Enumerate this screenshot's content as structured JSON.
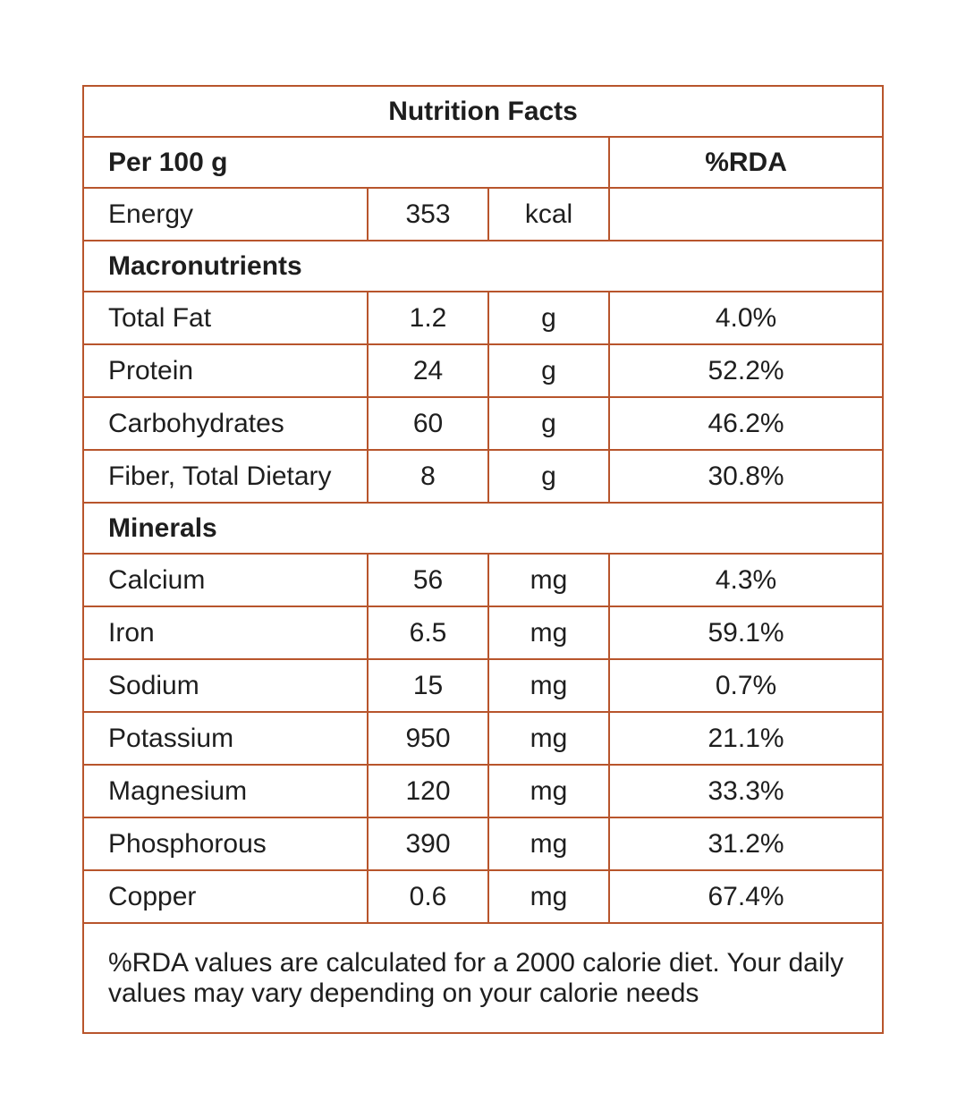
{
  "table": {
    "title": "Nutrition Facts",
    "header": [
      "Per 100 g",
      "%RDA"
    ],
    "energy": [
      "Energy",
      "353",
      "kcal"
    ],
    "sections": [
      {
        "name": "Macronutrients",
        "rows": [
          [
            "Total Fat",
            "1.2",
            "g",
            "4.0%"
          ],
          [
            "Protein",
            "24",
            "g",
            "52.2%"
          ],
          [
            "Carbohydrates",
            "60",
            "g",
            "46.2%"
          ],
          [
            "Fiber, Total Dietary",
            "8",
            "g",
            "30.8%"
          ]
        ]
      },
      {
        "name": "Minerals",
        "rows": [
          [
            "Calcium",
            "56",
            "mg",
            "4.3%"
          ],
          [
            "Iron",
            "6.5",
            "mg",
            "59.1%"
          ],
          [
            "Sodium",
            "15",
            "mg",
            "0.7%"
          ],
          [
            "Potassium",
            "950",
            "mg",
            "21.1%"
          ],
          [
            "Magnesium",
            "120",
            "mg",
            "33.3%"
          ],
          [
            "Phosphorous",
            "390",
            "mg",
            "31.2%"
          ],
          [
            "Copper",
            "0.6",
            "mg",
            "67.4%"
          ]
        ]
      }
    ],
    "footnote": "%RDA values are calculated for a 2000 calorie diet. Your daily values may vary depending on your calorie needs"
  }
}
